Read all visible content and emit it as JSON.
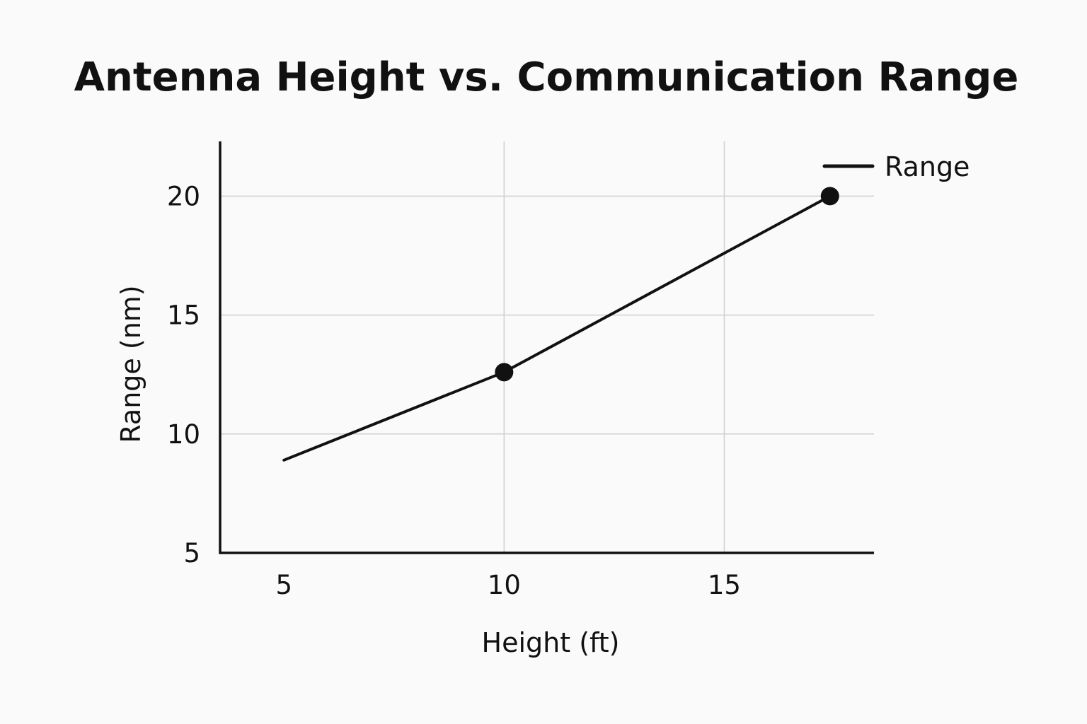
{
  "chart_data": {
    "type": "line",
    "title": "Antenna Height vs. Communication Range",
    "xlabel": "Height (ft)",
    "ylabel": "Range (nm)",
    "x_ticks": [
      "5",
      "10",
      "15"
    ],
    "y_ticks": [
      "5",
      "10",
      "15",
      "20"
    ],
    "xlim": [
      3.55,
      18.4
    ],
    "ylim": [
      5,
      22.3
    ],
    "grid": true,
    "legend_position": "top-right",
    "series": [
      {
        "name": "Range",
        "color": "#111111",
        "x": [
          5,
          10,
          17.4
        ],
        "y": [
          8.9,
          12.6,
          20
        ],
        "markers": [
          false,
          true,
          true
        ]
      }
    ]
  }
}
